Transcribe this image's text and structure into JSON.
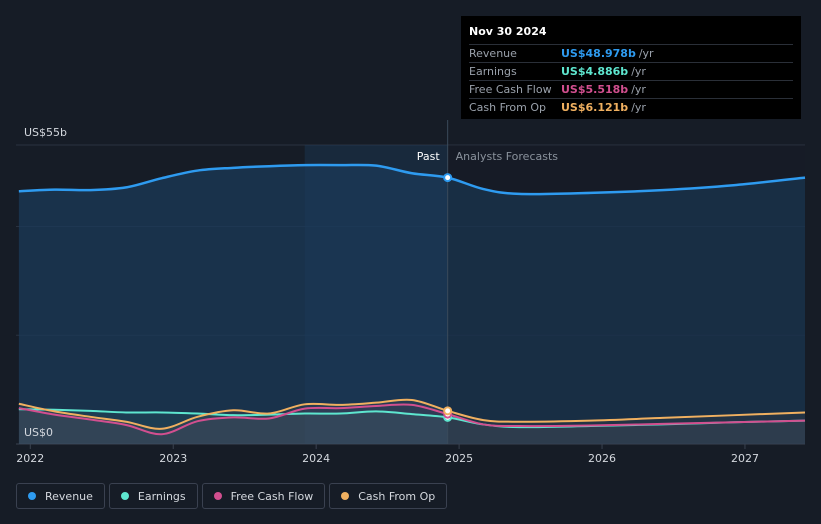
{
  "tooltip": {
    "date": "Nov 30 2024",
    "rows": [
      {
        "label": "Revenue",
        "value": "US$48.978b",
        "unit": "/yr",
        "color": "#2e9bf0"
      },
      {
        "label": "Earnings",
        "value": "US$4.886b",
        "unit": "/yr",
        "color": "#5ee6cf"
      },
      {
        "label": "Free Cash Flow",
        "value": "US$5.518b",
        "unit": "/yr",
        "color": "#d24f8f"
      },
      {
        "label": "Cash From Op",
        "value": "US$6.121b",
        "unit": "/yr",
        "color": "#f0b060"
      }
    ]
  },
  "legend": [
    {
      "label": "Revenue",
      "color": "#2e9bf0"
    },
    {
      "label": "Earnings",
      "color": "#5ee6cf"
    },
    {
      "label": "Free Cash Flow",
      "color": "#d24f8f"
    },
    {
      "label": "Cash From Op",
      "color": "#f0b060"
    }
  ],
  "chart_data": {
    "type": "line",
    "y_top_label": "US$55b",
    "y_bottom_label": "US$0",
    "ylim": [
      0,
      55
    ],
    "xlim": [
      2021.9,
      2027.42
    ],
    "x_ticks": [
      2022,
      2023,
      2024,
      2025,
      2026,
      2027
    ],
    "x_tick_labels": [
      "2022",
      "2023",
      "2024",
      "2025",
      "2026",
      "2027"
    ],
    "past_label": "Past",
    "forecast_label": "Analysts Forecasts",
    "divider_x": 2024.92,
    "highlight_start_x": 2023.92,
    "series": [
      {
        "name": "Revenue",
        "color": "#2e9bf0",
        "fill": true,
        "x": [
          2021.92,
          2022.17,
          2022.42,
          2022.67,
          2022.92,
          2023.17,
          2023.42,
          2023.67,
          2023.92,
          2024.17,
          2024.42,
          2024.67,
          2024.92,
          2025.17,
          2025.42,
          2025.92,
          2026.42,
          2026.92,
          2027.42
        ],
        "y": [
          46.5,
          46.8,
          46.7,
          47.2,
          48.9,
          50.3,
          50.8,
          51.1,
          51.3,
          51.3,
          51.2,
          49.8,
          49.0,
          46.9,
          46.0,
          46.2,
          46.7,
          47.6,
          49.0
        ]
      },
      {
        "name": "Earnings",
        "color": "#5ee6cf",
        "fill": false,
        "x": [
          2021.92,
          2022.17,
          2022.42,
          2022.67,
          2022.92,
          2023.17,
          2023.42,
          2023.67,
          2023.92,
          2024.17,
          2024.42,
          2024.67,
          2024.92,
          2025.17,
          2025.42,
          2025.92,
          2026.42,
          2026.92,
          2027.42
        ],
        "y": [
          6.4,
          6.3,
          6.1,
          5.8,
          5.8,
          5.6,
          5.3,
          5.4,
          5.6,
          5.6,
          6.0,
          5.5,
          4.9,
          3.6,
          3.1,
          3.3,
          3.6,
          4.0,
          4.3
        ]
      },
      {
        "name": "Free Cash Flow",
        "color": "#d24f8f",
        "fill": false,
        "x": [
          2021.92,
          2022.17,
          2022.42,
          2022.67,
          2022.92,
          2023.17,
          2023.42,
          2023.67,
          2023.92,
          2024.17,
          2024.42,
          2024.67,
          2024.92,
          2025.17,
          2025.42,
          2025.92,
          2026.42,
          2026.92,
          2027.42
        ],
        "y": [
          6.6,
          5.4,
          4.5,
          3.5,
          1.8,
          4.2,
          4.9,
          4.7,
          6.5,
          6.6,
          7.0,
          7.2,
          5.5,
          3.6,
          3.3,
          3.4,
          3.7,
          4.0,
          4.3
        ]
      },
      {
        "name": "Cash From Op",
        "color": "#f0b060",
        "fill": false,
        "x": [
          2021.92,
          2022.17,
          2022.42,
          2022.67,
          2022.92,
          2023.17,
          2023.42,
          2023.67,
          2023.92,
          2024.17,
          2024.42,
          2024.67,
          2024.92,
          2025.17,
          2025.42,
          2025.92,
          2026.42,
          2026.92,
          2027.42
        ],
        "y": [
          7.4,
          6.0,
          5.0,
          4.1,
          2.8,
          5.0,
          6.2,
          5.6,
          7.3,
          7.2,
          7.6,
          8.1,
          6.1,
          4.4,
          4.1,
          4.3,
          4.8,
          5.3,
          5.8
        ]
      }
    ]
  }
}
